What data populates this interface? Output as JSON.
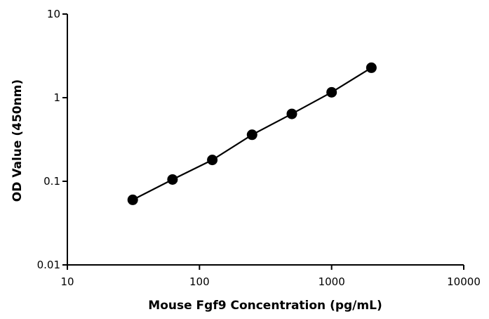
{
  "chart_data": {
    "type": "scatter",
    "xlabel": "Mouse Fgf9 Concentration (pg/mL)",
    "ylabel": "OD Value (450nm)",
    "x_scale": "log",
    "y_scale": "log",
    "xlim": [
      10,
      10000
    ],
    "ylim": [
      0.01,
      10
    ],
    "x_ticks": [
      "10",
      "100",
      "1000",
      "10000"
    ],
    "y_ticks": [
      "0.01",
      "0.1",
      "1",
      "10"
    ],
    "grid": false,
    "series": [
      {
        "x": [
          31.25,
          62.5,
          125,
          250,
          500,
          1000,
          2000
        ],
        "y": [
          0.06,
          0.105,
          0.18,
          0.36,
          0.64,
          1.16,
          2.28
        ]
      }
    ],
    "colors": {
      "line": "#000000",
      "marker": "#000000",
      "axis": "#000000"
    }
  }
}
